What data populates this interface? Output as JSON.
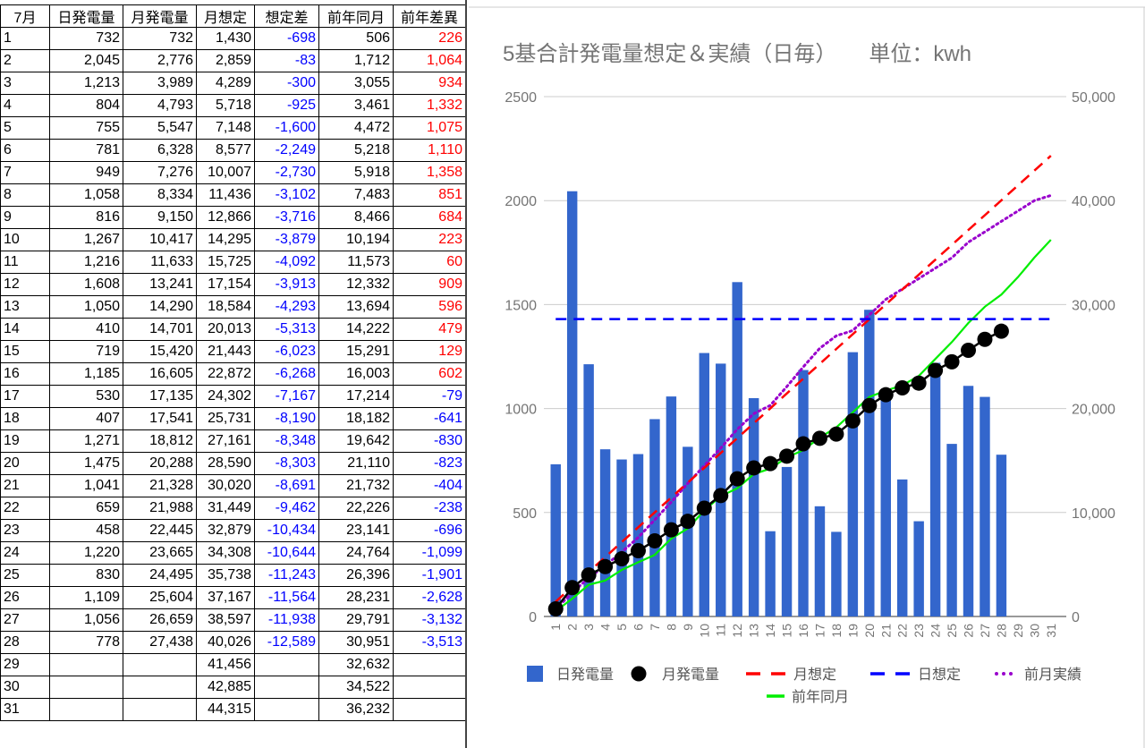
{
  "table": {
    "headers": [
      "7月",
      "日発電量",
      "月発電量",
      "月想定",
      "想定差",
      "前年同月",
      "前年差異"
    ],
    "rows": [
      [
        "1",
        "732",
        "732",
        "1,430",
        "-698",
        "506",
        "226"
      ],
      [
        "2",
        "2,045",
        "2,776",
        "2,859",
        "-83",
        "1,712",
        "1,064"
      ],
      [
        "3",
        "1,213",
        "3,989",
        "4,289",
        "-300",
        "3,055",
        "934"
      ],
      [
        "4",
        "804",
        "4,793",
        "5,718",
        "-925",
        "3,461",
        "1,332"
      ],
      [
        "5",
        "755",
        "5,547",
        "7,148",
        "-1,600",
        "4,472",
        "1,075"
      ],
      [
        "6",
        "781",
        "6,328",
        "8,577",
        "-2,249",
        "5,218",
        "1,110"
      ],
      [
        "7",
        "949",
        "7,276",
        "10,007",
        "-2,730",
        "5,918",
        "1,358"
      ],
      [
        "8",
        "1,058",
        "8,334",
        "11,436",
        "-3,102",
        "7,483",
        "851"
      ],
      [
        "9",
        "816",
        "9,150",
        "12,866",
        "-3,716",
        "8,466",
        "684"
      ],
      [
        "10",
        "1,267",
        "10,417",
        "14,295",
        "-3,879",
        "10,194",
        "223"
      ],
      [
        "11",
        "1,216",
        "11,633",
        "15,725",
        "-4,092",
        "11,573",
        "60"
      ],
      [
        "12",
        "1,608",
        "13,241",
        "17,154",
        "-3,913",
        "12,332",
        "909"
      ],
      [
        "13",
        "1,050",
        "14,290",
        "18,584",
        "-4,293",
        "13,694",
        "596"
      ],
      [
        "14",
        "410",
        "14,701",
        "20,013",
        "-5,313",
        "14,222",
        "479"
      ],
      [
        "15",
        "719",
        "15,420",
        "21,443",
        "-6,023",
        "15,291",
        "129"
      ],
      [
        "16",
        "1,185",
        "16,605",
        "22,872",
        "-6,268",
        "16,003",
        "602"
      ],
      [
        "17",
        "530",
        "17,135",
        "24,302",
        "-7,167",
        "17,214",
        "-79"
      ],
      [
        "18",
        "407",
        "17,541",
        "25,731",
        "-8,190",
        "18,182",
        "-641"
      ],
      [
        "19",
        "1,271",
        "18,812",
        "27,161",
        "-8,348",
        "19,642",
        "-830"
      ],
      [
        "20",
        "1,475",
        "20,288",
        "28,590",
        "-8,303",
        "21,110",
        "-823"
      ],
      [
        "21",
        "1,041",
        "21,328",
        "30,020",
        "-8,691",
        "21,732",
        "-404"
      ],
      [
        "22",
        "659",
        "21,988",
        "31,449",
        "-9,462",
        "22,226",
        "-238"
      ],
      [
        "23",
        "458",
        "22,445",
        "32,879",
        "-10,434",
        "23,141",
        "-696"
      ],
      [
        "24",
        "1,220",
        "23,665",
        "34,308",
        "-10,644",
        "24,764",
        "-1,099"
      ],
      [
        "25",
        "830",
        "24,495",
        "35,738",
        "-11,243",
        "26,396",
        "-1,901"
      ],
      [
        "26",
        "1,109",
        "25,604",
        "37,167",
        "-11,564",
        "28,231",
        "-2,628"
      ],
      [
        "27",
        "1,056",
        "26,659",
        "38,597",
        "-11,938",
        "29,791",
        "-3,132"
      ],
      [
        "28",
        "778",
        "27,438",
        "40,026",
        "-12,589",
        "30,951",
        "-3,513"
      ],
      [
        "29",
        "",
        "",
        "41,456",
        "",
        "32,632",
        ""
      ],
      [
        "30",
        "",
        "",
        "42,885",
        "",
        "34,522",
        ""
      ],
      [
        "31",
        "",
        "",
        "44,315",
        "",
        "36,232",
        ""
      ]
    ]
  },
  "colors": {
    "daily_bar": "#3366cc",
    "cumulative": "#000000",
    "monthly_target": "#ff0000",
    "daily_target": "#0000ff",
    "previous_month": "#9900cc",
    "previous_year": "#00ee00",
    "negative_text": "#0000ff",
    "positive_text": "#ff0000"
  },
  "chart_data": {
    "type": "bar",
    "title": "5基合計発電量想定＆実績（日毎）　　単位：kwh",
    "categories": [
      "1",
      "2",
      "3",
      "4",
      "5",
      "6",
      "7",
      "8",
      "9",
      "10",
      "11",
      "12",
      "13",
      "14",
      "15",
      "16",
      "17",
      "18",
      "19",
      "20",
      "21",
      "22",
      "23",
      "24",
      "25",
      "26",
      "27",
      "28",
      "29",
      "30",
      "31"
    ],
    "ylim_left": [
      0,
      2500
    ],
    "yticks_left": [
      0,
      500,
      1000,
      1500,
      2000,
      2500
    ],
    "ytick_labels_left": [
      "0",
      "500",
      "1000",
      "1500",
      "2000",
      "2500"
    ],
    "ylim_right": [
      0,
      50000
    ],
    "yticks_right": [
      0,
      10000,
      20000,
      30000,
      40000,
      50000
    ],
    "ytick_labels_right": [
      "0",
      "10,000",
      "20,000",
      "30,000",
      "40,000",
      "50,000"
    ],
    "grid": true,
    "legend_position": "bottom",
    "series": [
      {
        "name": "日発電量",
        "type": "bar",
        "axis": "left",
        "values": [
          732,
          2045,
          1213,
          804,
          755,
          781,
          949,
          1058,
          816,
          1267,
          1216,
          1608,
          1050,
          410,
          719,
          1185,
          530,
          407,
          1271,
          1475,
          1041,
          659,
          458,
          1220,
          830,
          1109,
          1056,
          778,
          null,
          null,
          null
        ]
      },
      {
        "name": "月発電量",
        "type": "line-markers",
        "axis": "right",
        "values": [
          732,
          2776,
          3989,
          4793,
          5547,
          6328,
          7276,
          8334,
          9150,
          10417,
          11633,
          13241,
          14290,
          14701,
          15420,
          16605,
          17135,
          17541,
          18812,
          20288,
          21328,
          21988,
          22445,
          23665,
          24495,
          25604,
          26659,
          27438,
          null,
          null,
          null
        ]
      },
      {
        "name": "月想定",
        "type": "dashed-line",
        "axis": "right",
        "values": [
          1430,
          2859,
          4289,
          5718,
          7148,
          8577,
          10007,
          11436,
          12866,
          14295,
          15725,
          17154,
          18584,
          20013,
          21443,
          22872,
          24302,
          25731,
          27161,
          28590,
          30020,
          31449,
          32879,
          34308,
          35738,
          37167,
          38597,
          40026,
          41456,
          42885,
          44315
        ]
      },
      {
        "name": "日想定",
        "type": "dashed-line",
        "axis": "left",
        "values": [
          1430,
          1430,
          1430,
          1430,
          1430,
          1430,
          1430,
          1430,
          1430,
          1430,
          1430,
          1430,
          1430,
          1430,
          1430,
          1430,
          1430,
          1430,
          1430,
          1430,
          1430,
          1430,
          1430,
          1430,
          1430,
          1430,
          1430,
          1430,
          1430,
          1430,
          1430
        ]
      },
      {
        "name": "前月実績",
        "type": "dotted-line",
        "axis": "right",
        "values": [
          700,
          2300,
          3700,
          4900,
          6200,
          7600,
          9300,
          11000,
          12800,
          14500,
          16200,
          18000,
          19500,
          20300,
          22100,
          24000,
          25800,
          27000,
          27500,
          29000,
          30500,
          31500,
          32500,
          33500,
          34500,
          36000,
          37000,
          38000,
          39000,
          40000,
          40500
        ]
      },
      {
        "name": "前年同月",
        "type": "line",
        "axis": "right",
        "values": [
          506,
          1712,
          3055,
          3461,
          4472,
          5218,
          5918,
          7483,
          8466,
          10194,
          11573,
          12332,
          13694,
          14222,
          15291,
          16003,
          17214,
          18182,
          19642,
          21110,
          21732,
          22226,
          23141,
          24764,
          26396,
          28231,
          29791,
          30951,
          32632,
          34522,
          36232
        ]
      }
    ]
  }
}
